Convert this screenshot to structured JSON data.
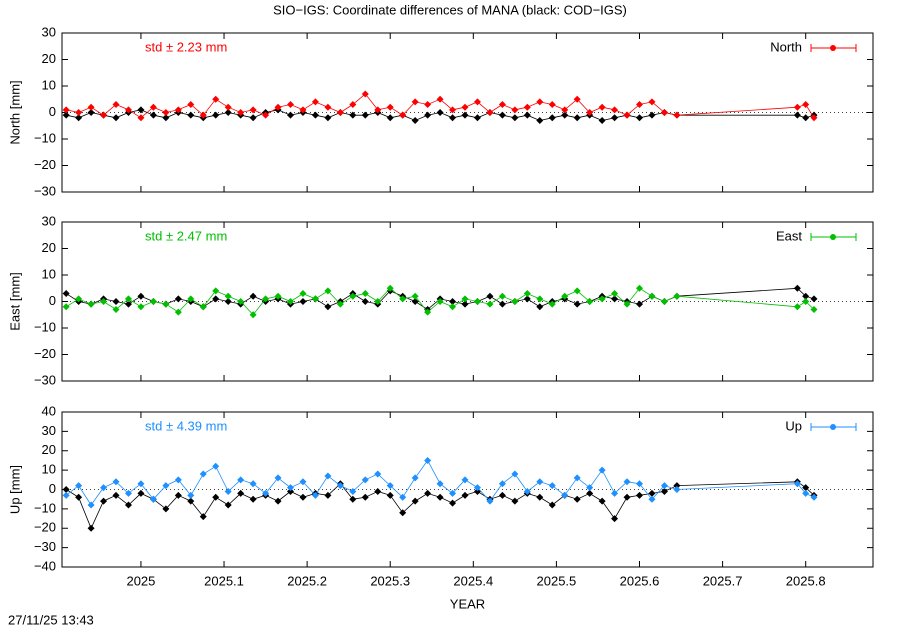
{
  "title": "SIO−IGS: Coordinate differences of MANA (black: COD−IGS)",
  "timestamp": "27/11/25 13:43",
  "chart_data": [
    {
      "type": "line",
      "ylabel": "North [mm]",
      "annotation": "std ± 2.23 mm",
      "legend": "upper right",
      "zero_line": true,
      "xlim": [
        2024.905,
        2025.881
      ],
      "xticks": [
        2025,
        2025.1,
        2025.2,
        2025.3,
        2025.4,
        2025.5,
        2025.6,
        2025.7,
        2025.8
      ],
      "ylim": [
        -30,
        30
      ],
      "yticks": [
        {
          "value": -30,
          "label": "−30"
        },
        {
          "value": -20,
          "label": "−20"
        },
        {
          "value": -10,
          "label": "−10"
        },
        0,
        10,
        20,
        30
      ],
      "x": [
        2024.91,
        2024.925,
        2024.94,
        2024.955,
        2024.97,
        2024.985,
        2025,
        2025.015,
        2025.03,
        2025.045,
        2025.06,
        2025.075,
        2025.09,
        2025.105,
        2025.12,
        2025.135,
        2025.15,
        2025.165,
        2025.18,
        2025.195,
        2025.21,
        2025.225,
        2025.24,
        2025.255,
        2025.27,
        2025.285,
        2025.3,
        2025.315,
        2025.33,
        2025.345,
        2025.36,
        2025.375,
        2025.39,
        2025.405,
        2025.42,
        2025.435,
        2025.45,
        2025.465,
        2025.48,
        2025.495,
        2025.51,
        2025.525,
        2025.54,
        2025.555,
        2025.57,
        2025.585,
        2025.6,
        2025.615,
        2025.63,
        2025.645,
        2025.79,
        2025.8,
        2025.81
      ],
      "series": [
        {
          "color": "#000000",
          "values": [
            -1,
            -2,
            0,
            -1,
            -2,
            0,
            1,
            -1,
            -2,
            0,
            -1,
            -2,
            -1,
            0,
            -1,
            -2,
            0,
            1,
            -1,
            0,
            -1,
            -2,
            0,
            -1,
            -1,
            0,
            -2,
            -1,
            -3,
            -1,
            0,
            -2,
            -1,
            -2,
            0,
            -1,
            -2,
            -1,
            -3,
            -2,
            -1,
            -2,
            -1,
            -3,
            -2,
            -1,
            -2,
            -1,
            0,
            -1,
            -1,
            -2,
            -1
          ]
        },
        {
          "name": "North",
          "color": "#ff0000",
          "values": [
            1,
            0,
            2,
            -1,
            3,
            1,
            -2,
            2,
            0,
            1,
            3,
            -1,
            5,
            2,
            0,
            1,
            -1,
            2,
            3,
            1,
            4,
            2,
            0,
            3,
            7,
            1,
            2,
            -1,
            4,
            3,
            5,
            1,
            2,
            4,
            0,
            3,
            1,
            2,
            4,
            3,
            1,
            5,
            0,
            2,
            1,
            -1,
            3,
            4,
            0,
            -1,
            2,
            3,
            -2
          ]
        }
      ]
    },
    {
      "type": "line",
      "ylabel": "East [mm]",
      "annotation": "std ± 2.47 mm",
      "legend": "upper right",
      "zero_line": true,
      "xlim": [
        2024.905,
        2025.881
      ],
      "xticks": [
        2025,
        2025.1,
        2025.2,
        2025.3,
        2025.4,
        2025.5,
        2025.6,
        2025.7,
        2025.8
      ],
      "ylim": [
        -30,
        30
      ],
      "yticks": [
        {
          "value": -30,
          "label": "−30"
        },
        {
          "value": -20,
          "label": "−20"
        },
        {
          "value": -10,
          "label": "−10"
        },
        0,
        10,
        20,
        30
      ],
      "x": [
        2024.91,
        2024.925,
        2024.94,
        2024.955,
        2024.97,
        2024.985,
        2025,
        2025.015,
        2025.03,
        2025.045,
        2025.06,
        2025.075,
        2025.09,
        2025.105,
        2025.12,
        2025.135,
        2025.15,
        2025.165,
        2025.18,
        2025.195,
        2025.21,
        2025.225,
        2025.24,
        2025.255,
        2025.27,
        2025.285,
        2025.3,
        2025.315,
        2025.33,
        2025.345,
        2025.36,
        2025.375,
        2025.39,
        2025.405,
        2025.42,
        2025.435,
        2025.45,
        2025.465,
        2025.48,
        2025.495,
        2025.51,
        2025.525,
        2025.54,
        2025.555,
        2025.57,
        2025.585,
        2025.6,
        2025.615,
        2025.63,
        2025.645,
        2025.79,
        2025.8,
        2025.81
      ],
      "series": [
        {
          "color": "#000000",
          "values": [
            3,
            0,
            -1,
            1,
            0,
            -1,
            2,
            0,
            -1,
            1,
            0,
            -2,
            1,
            0,
            -1,
            2,
            0,
            1,
            -1,
            0,
            1,
            -2,
            0,
            3,
            0,
            -1,
            4,
            2,
            0,
            -3,
            1,
            0,
            -1,
            0,
            2,
            -1,
            0,
            1,
            -2,
            0,
            1,
            -1,
            0,
            2,
            1,
            0,
            -1,
            2,
            0,
            2,
            5,
            2,
            1
          ]
        },
        {
          "name": "East",
          "color": "#00c000",
          "values": [
            -2,
            1,
            -1,
            0,
            -3,
            1,
            -2,
            0,
            -1,
            -4,
            1,
            -2,
            4,
            2,
            0,
            -5,
            1,
            2,
            0,
            3,
            1,
            4,
            -1,
            2,
            3,
            0,
            5,
            1,
            2,
            -4,
            0,
            -2,
            1,
            0,
            -1,
            2,
            0,
            3,
            1,
            -1,
            2,
            4,
            0,
            1,
            3,
            -1,
            5,
            2,
            0,
            2,
            -2,
            0,
            -3
          ]
        }
      ]
    },
    {
      "type": "line",
      "ylabel": "Up [mm]",
      "annotation": "std ± 4.39 mm",
      "legend": "upper right",
      "zero_line": true,
      "xlabel": "YEAR",
      "xlim": [
        2024.905,
        2025.881
      ],
      "xticks": [
        2025,
        2025.1,
        2025.2,
        2025.3,
        2025.4,
        2025.5,
        2025.6,
        2025.7,
        2025.8
      ],
      "ylim": [
        -40,
        40
      ],
      "yticks": [
        {
          "value": -40,
          "label": "−40"
        },
        {
          "value": -30,
          "label": "−30"
        },
        {
          "value": -20,
          "label": "−20"
        },
        {
          "value": -10,
          "label": "−10"
        },
        0,
        10,
        20,
        30,
        40
      ],
      "x": [
        2024.91,
        2024.925,
        2024.94,
        2024.955,
        2024.97,
        2024.985,
        2025,
        2025.015,
        2025.03,
        2025.045,
        2025.06,
        2025.075,
        2025.09,
        2025.105,
        2025.12,
        2025.135,
        2025.15,
        2025.165,
        2025.18,
        2025.195,
        2025.21,
        2025.225,
        2025.24,
        2025.255,
        2025.27,
        2025.285,
        2025.3,
        2025.315,
        2025.33,
        2025.345,
        2025.36,
        2025.375,
        2025.39,
        2025.405,
        2025.42,
        2025.435,
        2025.45,
        2025.465,
        2025.48,
        2025.495,
        2025.51,
        2025.525,
        2025.54,
        2025.555,
        2025.57,
        2025.585,
        2025.6,
        2025.615,
        2025.63,
        2025.645,
        2025.79,
        2025.8,
        2025.81
      ],
      "series": [
        {
          "color": "#000000",
          "values": [
            0,
            -4,
            -20,
            -6,
            -3,
            -8,
            -2,
            -5,
            -10,
            -3,
            -6,
            -14,
            -4,
            -8,
            -2,
            -5,
            -3,
            -6,
            -1,
            -4,
            -2,
            -3,
            3,
            -5,
            -4,
            -1,
            -3,
            -12,
            -6,
            -2,
            -4,
            -7,
            -3,
            -1,
            -5,
            -3,
            -6,
            -2,
            -4,
            -8,
            -3,
            -5,
            -2,
            -6,
            -15,
            -4,
            -3,
            -2,
            -1,
            2,
            4,
            1,
            -3
          ]
        },
        {
          "name": "Up",
          "color": "#1e90ff",
          "values": [
            -3,
            2,
            -8,
            1,
            4,
            -2,
            3,
            -5,
            2,
            5,
            -3,
            8,
            12,
            -1,
            5,
            3,
            -2,
            6,
            1,
            4,
            -3,
            7,
            2,
            -1,
            5,
            8,
            2,
            -4,
            6,
            15,
            3,
            -2,
            5,
            1,
            -6,
            3,
            8,
            -1,
            4,
            2,
            -3,
            6,
            1,
            10,
            -2,
            4,
            3,
            -5,
            2,
            0,
            3,
            -2,
            -4
          ]
        }
      ]
    }
  ]
}
